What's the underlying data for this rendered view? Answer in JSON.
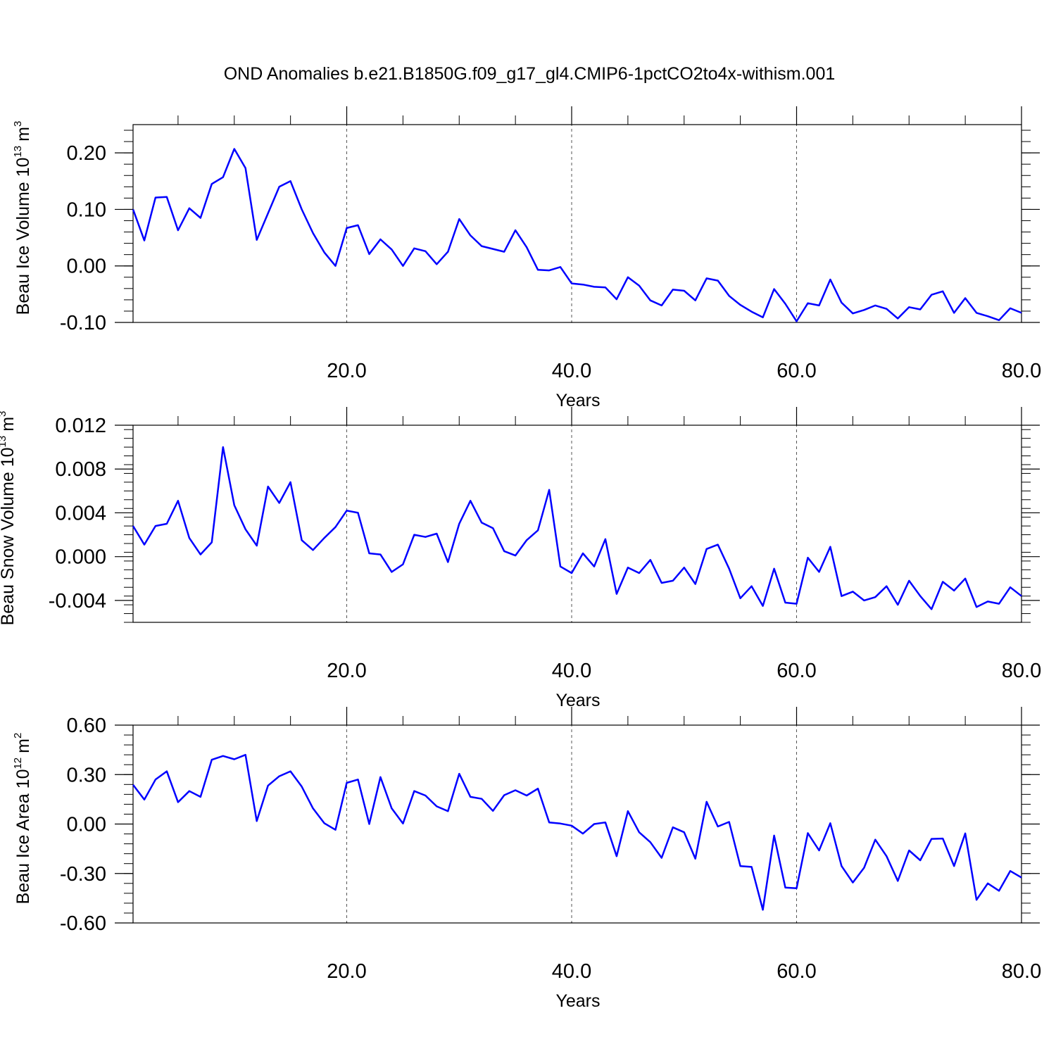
{
  "title": "OND Anomalies b.e21.B1850G.f09_g17_gl4.CMIP6-1pctCO2to4x-withism.001",
  "colors": {
    "series": "#0000ff",
    "axis": "#000000",
    "grid": "#555555"
  },
  "chart_data": [
    {
      "type": "line",
      "ylabel_main": "Beau Ice Volume 10",
      "ylabel_exp": "13",
      "ylabel_unit": "m",
      "ylabel_unit_exp": "3",
      "xlabel": "Years",
      "xlim": [
        1,
        80
      ],
      "ylim": [
        -0.1,
        0.25
      ],
      "yticks": [
        -0.1,
        0.0,
        0.1,
        0.2
      ],
      "ytick_labels": [
        "-0.10",
        "0.00",
        "0.10",
        "0.20"
      ],
      "xticks": [
        20,
        40,
        60,
        80
      ],
      "xtick_labels": [
        "20.0",
        "40.0",
        "60.0",
        "80.0"
      ],
      "grid_x": [
        20,
        40,
        60
      ],
      "x_start": 1,
      "values": [
        0.1,
        0.045,
        0.121,
        0.122,
        0.063,
        0.102,
        0.085,
        0.145,
        0.157,
        0.207,
        0.173,
        0.046,
        0.093,
        0.14,
        0.15,
        0.1,
        0.058,
        0.024,
        0.0,
        0.067,
        0.072,
        0.021,
        0.047,
        0.029,
        0.0,
        0.031,
        0.026,
        0.003,
        0.025,
        0.083,
        0.054,
        0.035,
        0.03,
        0.025,
        0.063,
        0.033,
        -0.007,
        -0.008,
        -0.002,
        -0.031,
        -0.033,
        -0.037,
        -0.038,
        -0.059,
        -0.02,
        -0.035,
        -0.061,
        -0.07,
        -0.042,
        -0.044,
        -0.061,
        -0.022,
        -0.026,
        -0.053,
        -0.069,
        -0.081,
        -0.091,
        -0.041,
        -0.067,
        -0.098,
        -0.066,
        -0.07,
        -0.024,
        -0.065,
        -0.084,
        -0.078,
        -0.07,
        -0.076,
        -0.093,
        -0.073,
        -0.077,
        -0.051,
        -0.045,
        -0.083,
        -0.057,
        -0.083,
        -0.089,
        -0.096,
        -0.075,
        -0.083
      ]
    },
    {
      "type": "line",
      "ylabel_main": "Beau Snow Volume 10",
      "ylabel_exp": "13",
      "ylabel_unit": "m",
      "ylabel_unit_exp": "3",
      "xlabel": "Years",
      "xlim": [
        1,
        80
      ],
      "ylim": [
        -0.006,
        0.012
      ],
      "yticks": [
        -0.004,
        0.0,
        0.004,
        0.008,
        0.012
      ],
      "ytick_labels": [
        "-0.004",
        "0.000",
        "0.004",
        "0.008",
        "0.012"
      ],
      "xticks": [
        20,
        40,
        60,
        80
      ],
      "xtick_labels": [
        "20.0",
        "40.0",
        "60.0",
        "80.0"
      ],
      "grid_x": [
        20,
        40,
        60
      ],
      "x_start": 1,
      "values": [
        0.0028,
        0.0011,
        0.0028,
        0.003,
        0.0051,
        0.0017,
        0.0002,
        0.0013,
        0.01,
        0.0047,
        0.0025,
        0.001,
        0.0064,
        0.0049,
        0.0068,
        0.0015,
        0.0006,
        0.0017,
        0.0027,
        0.0042,
        0.004,
        0.0003,
        0.0002,
        -0.0014,
        -0.0007,
        0.002,
        0.0018,
        0.0021,
        -0.0005,
        0.003,
        0.0051,
        0.0031,
        0.0026,
        0.0005,
        0.0001,
        0.0015,
        0.0024,
        0.0061,
        -0.0009,
        -0.0015,
        0.0003,
        -0.0009,
        0.0016,
        -0.0034,
        -0.001,
        -0.0015,
        -0.0003,
        -0.0024,
        -0.0022,
        -0.001,
        -0.0025,
        0.0007,
        0.0011,
        -0.0011,
        -0.0038,
        -0.0027,
        -0.0045,
        -0.0011,
        -0.0042,
        -0.0043,
        -0.0001,
        -0.0014,
        0.0009,
        -0.0036,
        -0.0032,
        -0.004,
        -0.0037,
        -0.0027,
        -0.0044,
        -0.0022,
        -0.0036,
        -0.0048,
        -0.0023,
        -0.0031,
        -0.002,
        -0.0046,
        -0.0041,
        -0.0043,
        -0.0028,
        -0.0036
      ]
    },
    {
      "type": "line",
      "ylabel_main": "Beau Ice Area 10",
      "ylabel_exp": "12",
      "ylabel_unit": "m",
      "ylabel_unit_exp": "2",
      "xlabel": "Years",
      "xlim": [
        1,
        80
      ],
      "ylim": [
        -0.6,
        0.6
      ],
      "yticks": [
        -0.6,
        -0.3,
        0.0,
        0.3,
        0.6
      ],
      "ytick_labels": [
        "-0.60",
        "-0.30",
        "0.00",
        "0.30",
        "0.60"
      ],
      "xticks": [
        20,
        40,
        60,
        80
      ],
      "xtick_labels": [
        "20.0",
        "40.0",
        "60.0",
        "80.0"
      ],
      "grid_x": [
        20,
        40,
        60
      ],
      "x_start": 1,
      "values": [
        0.238,
        0.148,
        0.27,
        0.32,
        0.133,
        0.2,
        0.165,
        0.39,
        0.413,
        0.393,
        0.42,
        0.018,
        0.233,
        0.29,
        0.32,
        0.227,
        0.095,
        0.005,
        -0.035,
        0.25,
        0.27,
        0.0,
        0.285,
        0.095,
        0.003,
        0.2,
        0.173,
        0.107,
        0.078,
        0.305,
        0.165,
        0.153,
        0.08,
        0.175,
        0.205,
        0.173,
        0.215,
        0.01,
        0.003,
        -0.01,
        -0.058,
        0.0,
        0.01,
        -0.195,
        0.078,
        -0.05,
        -0.11,
        -0.205,
        -0.02,
        -0.05,
        -0.21,
        0.135,
        -0.015,
        0.013,
        -0.255,
        -0.26,
        -0.52,
        -0.07,
        -0.385,
        -0.39,
        -0.055,
        -0.16,
        0.005,
        -0.255,
        -0.355,
        -0.265,
        -0.095,
        -0.195,
        -0.345,
        -0.16,
        -0.22,
        -0.09,
        -0.088,
        -0.255,
        -0.057,
        -0.46,
        -0.36,
        -0.405,
        -0.285,
        -0.325
      ]
    }
  ]
}
